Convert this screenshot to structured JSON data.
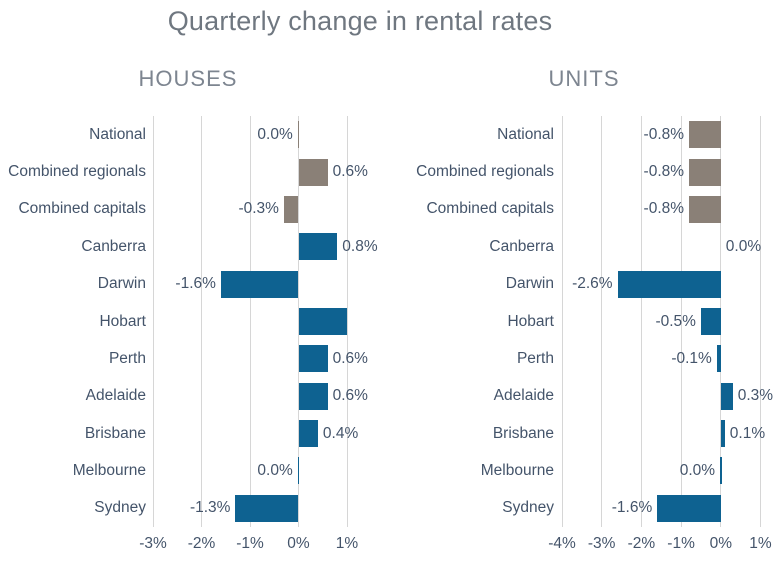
{
  "colors": {
    "bar_blue": "#0e6291",
    "bar_taupe": "#8a8077",
    "text_navy": "#44546a",
    "title_gray": "#6f7780",
    "header_gray": "#7d8590",
    "gridline": "#d6d6d6",
    "background": "#ffffff"
  },
  "chart_data": {
    "type": "bar",
    "orientation": "horizontal",
    "title": "Quarterly change in rental rates",
    "grid": "vertical-gridlines-on",
    "legend": "none",
    "categories": [
      "National",
      "Combined regionals",
      "Combined capitals",
      "Canberra",
      "Darwin",
      "Hobart",
      "Perth",
      "Adelaide",
      "Brisbane",
      "Melbourne",
      "Sydney"
    ],
    "color_note": "first three categories (aggregates) are taupe bars, cities are blue bars",
    "panels": [
      {
        "name": "HOUSES",
        "xlabel": "",
        "xlim": [
          -3,
          1
        ],
        "xticks": [
          "-3%",
          "-2%",
          "-1%",
          "0%",
          "1%"
        ],
        "values": [
          0.0,
          0.6,
          -0.3,
          0.8,
          -1.6,
          1.0,
          0.6,
          0.6,
          0.4,
          0.0,
          -1.3
        ],
        "labels": [
          "0.0%",
          "0.6%",
          "-0.3%",
          "0.8%",
          "-1.6%",
          "",
          "0.6%",
          "0.6%",
          "0.4%",
          "0.0%",
          "-1.3%"
        ],
        "label_side": [
          "left",
          "right",
          "left",
          "right",
          "left",
          "none",
          "right",
          "right",
          "right",
          "left",
          "left"
        ]
      },
      {
        "name": "UNITS",
        "xlabel": "",
        "xlim": [
          -4,
          1
        ],
        "xticks": [
          "-4%",
          "-3%",
          "-2%",
          "-1%",
          "0%",
          "1%"
        ],
        "values": [
          -0.8,
          -0.8,
          -0.8,
          0.0,
          -2.6,
          -0.5,
          -0.1,
          0.3,
          0.1,
          0.0,
          -1.6
        ],
        "labels": [
          "-0.8%",
          "-0.8%",
          "-0.8%",
          "0.0%",
          "-2.6%",
          "-0.5%",
          "-0.1%",
          "0.3%",
          "0.1%",
          "0.0%",
          "-1.6%"
        ],
        "label_side": [
          "left",
          "left",
          "left",
          "right",
          "left",
          "left",
          "left",
          "right",
          "right",
          "left",
          "left"
        ]
      }
    ]
  }
}
